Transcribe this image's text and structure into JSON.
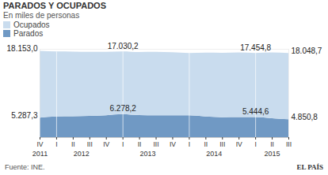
{
  "chart_data": {
    "type": "area",
    "title": "PARADOS Y OCUPADOS",
    "subtitle": "En miles de personas",
    "categories": [
      "IV",
      "I",
      "II",
      "III",
      "IV",
      "I",
      "II",
      "III",
      "IV",
      "I",
      "II",
      "III",
      "IV",
      "I",
      "II",
      "III"
    ],
    "category_groups": [
      "2011",
      "2012",
      "2012",
      "2012",
      "2012",
      "2013",
      "2013",
      "2013",
      "2013",
      "2014",
      "2014",
      "2014",
      "2014",
      "2015",
      "2015",
      "2015"
    ],
    "series": [
      {
        "name": "Ocupados",
        "color": "#c9dcee",
        "values": [
          18153.0,
          17640,
          17560,
          17420,
          17240,
          17030.2,
          17160,
          17230,
          17135,
          16950,
          17350,
          17500,
          17570,
          17454.8,
          17860,
          18048.7
        ],
        "value_labels": [
          "18.153,0",
          null,
          null,
          null,
          null,
          "17.030,2",
          null,
          null,
          null,
          null,
          null,
          null,
          null,
          "17.454,8",
          null,
          "18.048,7"
        ]
      },
      {
        "name": "Parados",
        "color": "#7099c4",
        "values": [
          5287.3,
          5640,
          5690,
          5780,
          5965,
          6278.2,
          5980,
          5940,
          5935,
          5930,
          5620,
          5430,
          5460,
          5444.6,
          5150,
          4850.8
        ],
        "value_labels": [
          "5.287,3",
          null,
          null,
          null,
          null,
          "6.278,2",
          null,
          null,
          null,
          null,
          null,
          null,
          null,
          "5.444,6",
          null,
          "4.850,8"
        ]
      }
    ],
    "ylim": [
      0,
      24000
    ],
    "stacked": true,
    "data_labels": true,
    "tick_labels": "x",
    "legend": "top-left",
    "source": "Fuente: INE.",
    "credit": "EL PAÍS"
  }
}
